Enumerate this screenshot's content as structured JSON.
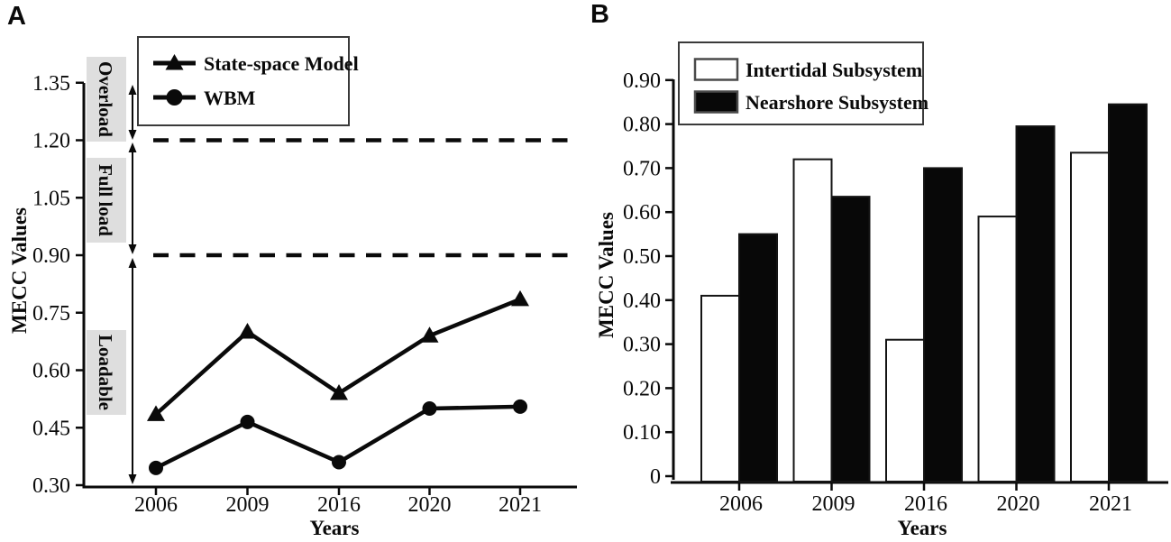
{
  "figure": {
    "panel_a_label": "A",
    "panel_b_label": "B",
    "colors": {
      "ink": "#0a0a0a",
      "zone_fill": "#dedede",
      "bar_white": "#ffffff",
      "bar_black": "#080808",
      "legend_border": "#3a3a3a"
    }
  },
  "chart_data": [
    {
      "panel": "A",
      "type": "line",
      "title": "",
      "xlabel": "Years",
      "ylabel": "MECC Values",
      "categories": [
        "2006",
        "2009",
        "2016",
        "2020",
        "2021"
      ],
      "ylim": [
        0.3,
        1.42
      ],
      "ytick_values": [
        0.3,
        0.45,
        0.6,
        0.75,
        0.9,
        1.05,
        1.2,
        1.35
      ],
      "ytick_labels": [
        "0.30",
        "0.45",
        "0.60",
        "0.75",
        "0.90",
        "1.05",
        "1.20",
        "1.35"
      ],
      "grid": false,
      "legend_position": "top-left-inside",
      "series": [
        {
          "name": "State-space Model",
          "marker": "triangle",
          "values": [
            0.485,
            0.7,
            0.54,
            0.69,
            0.785
          ]
        },
        {
          "name": "WBM",
          "marker": "circle",
          "values": [
            0.345,
            0.465,
            0.36,
            0.5,
            0.505
          ]
        }
      ],
      "reference_lines": [
        {
          "value": 1.2,
          "style": "dashed"
        },
        {
          "value": 0.9,
          "style": "dashed"
        }
      ],
      "zones": [
        {
          "label": "Overload",
          "range": [
            1.2,
            1.42
          ]
        },
        {
          "label": "Full load",
          "range": [
            0.9,
            1.2
          ]
        },
        {
          "label": "Loadable",
          "range": [
            0.3,
            0.9
          ]
        }
      ]
    },
    {
      "panel": "B",
      "type": "bar",
      "title": "",
      "xlabel": "Years",
      "ylabel": "MECC Values",
      "categories": [
        "2006",
        "2009",
        "2016",
        "2020",
        "2021"
      ],
      "ylim": [
        0,
        0.95
      ],
      "ytick_values": [
        0,
        0.1,
        0.2,
        0.3,
        0.4,
        0.5,
        0.6,
        0.7,
        0.8,
        0.9
      ],
      "ytick_labels": [
        "0",
        "0.10",
        "0.20",
        "0.30",
        "0.40",
        "0.50",
        "0.60",
        "0.70",
        "0.80",
        "0.90"
      ],
      "grid": false,
      "legend_position": "top-left-inside",
      "series": [
        {
          "name": "Intertidal Subsystem",
          "fill": "white",
          "values": [
            0.41,
            0.72,
            0.31,
            0.59,
            0.735
          ]
        },
        {
          "name": "Nearshore Subsystem",
          "fill": "black",
          "values": [
            0.55,
            0.635,
            0.7,
            0.795,
            0.845
          ]
        }
      ]
    }
  ]
}
